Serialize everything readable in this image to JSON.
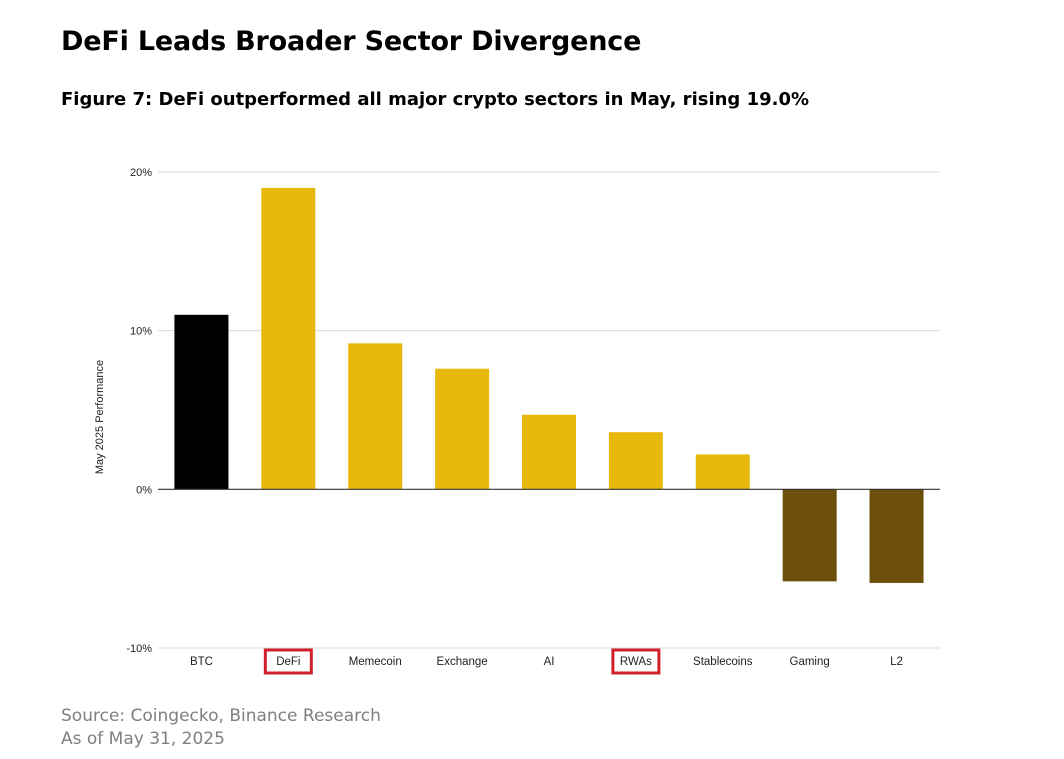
{
  "page": {
    "heading": "DeFi Leads Broader Sector Divergence",
    "subheading": "Figure 7: DeFi outperformed all major crypto sectors in May, rising 19.0%",
    "source_line1": "Source: Coingecko, Binance Research",
    "source_line2": "As of May 31, 2025"
  },
  "colors": {
    "btc": "#000000",
    "positive": "#E8B90A",
    "negative": "#6B4F0A",
    "highlight_box": "#D0202C",
    "grid": "#D9D9D9",
    "axis": "#333333",
    "text": "#222222"
  },
  "chart_data": {
    "type": "bar",
    "title": "",
    "xlabel": "",
    "ylabel": "May 2025 Performance",
    "ylim": [
      -10,
      20
    ],
    "yticks": [
      -10,
      0,
      10,
      20
    ],
    "ytick_labels": [
      "-10%",
      "0%",
      "10%",
      "20%"
    ],
    "grid": true,
    "categories": [
      "BTC",
      "DeFi",
      "Memecoin",
      "Exchange",
      "AI",
      "RWAs",
      "Stablecoins",
      "Gaming",
      "L2"
    ],
    "values": [
      11.0,
      19.0,
      9.2,
      7.6,
      4.7,
      3.6,
      2.2,
      -5.8,
      -5.9
    ],
    "highlighted": [
      "DeFi",
      "RWAs"
    ]
  }
}
